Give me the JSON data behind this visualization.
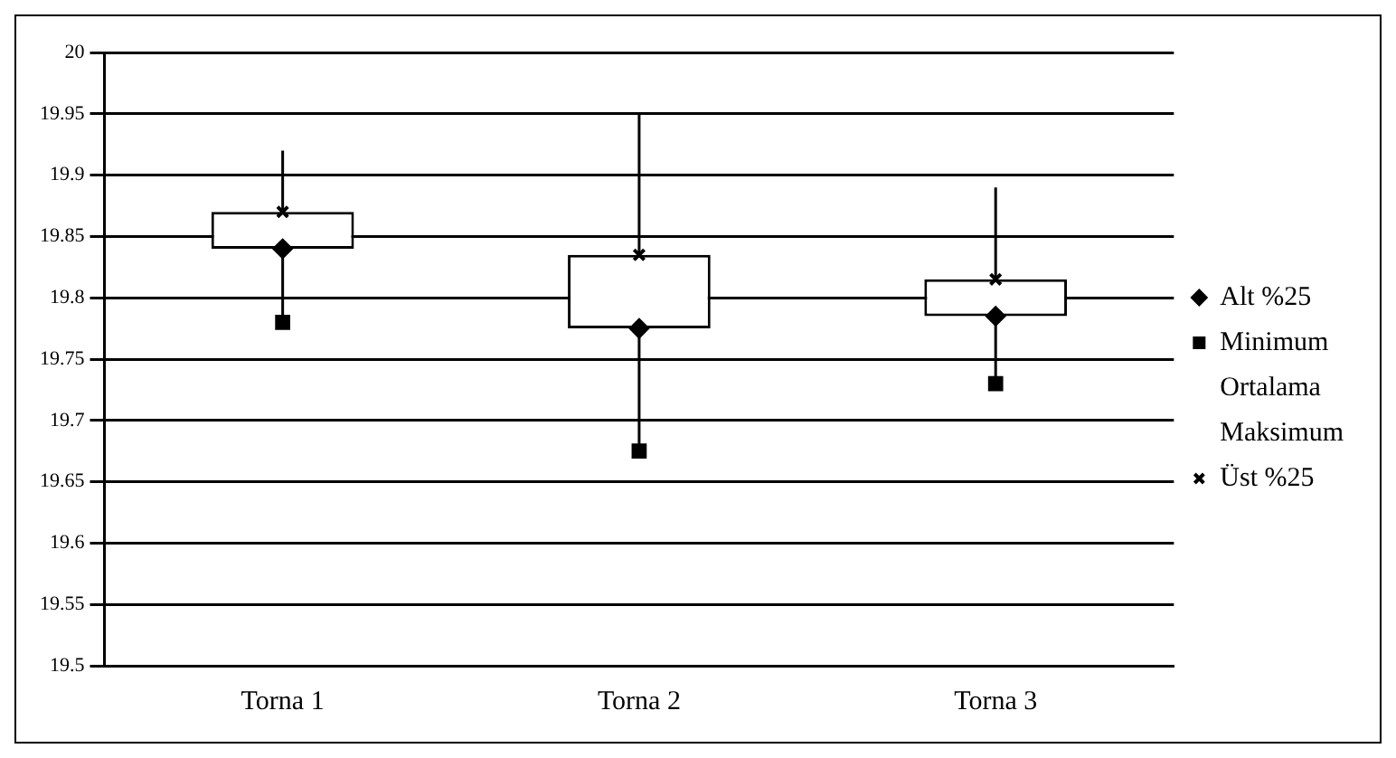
{
  "chart_data": {
    "type": "box",
    "categories": [
      "Torna 1",
      "Torna 2",
      "Torna 3"
    ],
    "boxes": [
      {
        "low": 19.78,
        "q1": 19.84,
        "q3": 19.87,
        "high": 19.92
      },
      {
        "low": 19.675,
        "q1": 19.775,
        "q3": 19.835,
        "high": 19.95
      },
      {
        "low": 19.73,
        "q1": 19.785,
        "q3": 19.815,
        "high": 19.89
      }
    ],
    "series": [
      {
        "name": "Alt %25",
        "type": "scatter",
        "color": "#000000",
        "marker": "diamond",
        "values": [
          19.84,
          19.775,
          19.785
        ]
      },
      {
        "name": "Minimum",
        "type": "scatter",
        "color": "#000000",
        "marker": "square",
        "values": [
          19.78,
          19.675,
          19.73
        ]
      },
      {
        "name": "Ortalama",
        "type": "scatter",
        "color": "#000000",
        "marker": "none",
        "values": [
          null,
          null,
          null
        ]
      },
      {
        "name": "Maksimum",
        "type": "scatter",
        "color": "#000000",
        "marker": "none",
        "values": [
          null,
          null,
          null
        ]
      },
      {
        "name": "Üst %25",
        "type": "scatter",
        "color": "#000000",
        "marker": "cross",
        "values": [
          19.87,
          19.835,
          19.815
        ]
      }
    ],
    "ylim": [
      19.5,
      20
    ],
    "yticks": [
      19.5,
      19.55,
      19.6,
      19.65,
      19.7,
      19.75,
      19.8,
      19.85,
      19.9,
      19.95,
      20
    ],
    "grid": "y",
    "legend": "right"
  }
}
